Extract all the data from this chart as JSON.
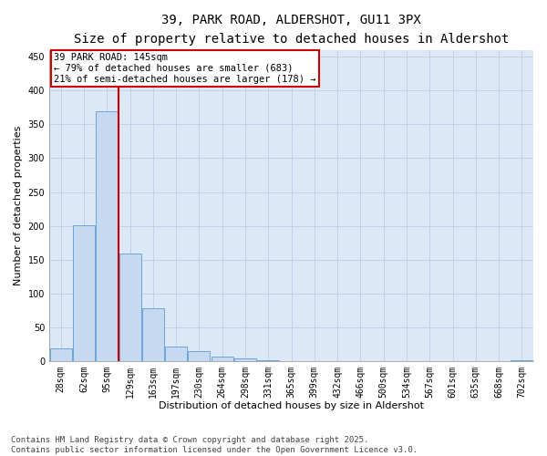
{
  "title_line1": "39, PARK ROAD, ALDERSHOT, GU11 3PX",
  "title_line2": "Size of property relative to detached houses in Aldershot",
  "xlabel": "Distribution of detached houses by size in Aldershot",
  "ylabel": "Number of detached properties",
  "categories": [
    "28sqm",
    "62sqm",
    "95sqm",
    "129sqm",
    "163sqm",
    "197sqm",
    "230sqm",
    "264sqm",
    "298sqm",
    "331sqm",
    "365sqm",
    "399sqm",
    "432sqm",
    "466sqm",
    "500sqm",
    "534sqm",
    "567sqm",
    "601sqm",
    "635sqm",
    "668sqm",
    "702sqm"
  ],
  "values": [
    19,
    201,
    370,
    159,
    78,
    21,
    14,
    6,
    4,
    1,
    0,
    0,
    0,
    0,
    0,
    0,
    0,
    0,
    0,
    0,
    1
  ],
  "bar_color": "#c5d9f0",
  "bar_edge_color": "#5b9bd5",
  "vline_x": 2.5,
  "vline_color": "#cc0000",
  "annotation_text": "39 PARK ROAD: 145sqm\n← 79% of detached houses are smaller (683)\n21% of semi-detached houses are larger (178) →",
  "annotation_box_color": "#cc0000",
  "annotation_fontsize": 7.5,
  "ylim": [
    0,
    460
  ],
  "yticks": [
    0,
    50,
    100,
    150,
    200,
    250,
    300,
    350,
    400,
    450
  ],
  "grid_color": "#c0d0e8",
  "background_color": "#dce8f5",
  "footer_line1": "Contains HM Land Registry data © Crown copyright and database right 2025.",
  "footer_line2": "Contains public sector information licensed under the Open Government Licence v3.0.",
  "title_fontsize": 10,
  "subtitle_fontsize": 8.5,
  "axis_label_fontsize": 8,
  "tick_fontsize": 7,
  "footer_fontsize": 6.5
}
